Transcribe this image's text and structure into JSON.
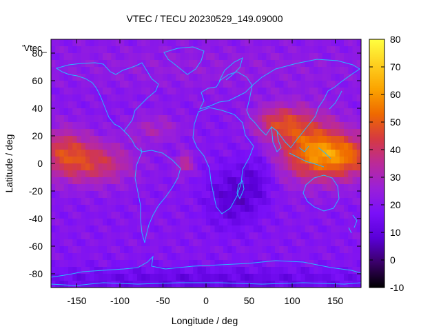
{
  "chart_data": {
    "type": "heatmap",
    "title": "VTEC / TECU 20230529_149.09000",
    "xlabel": "Longitude / deg",
    "ylabel": "Latitude / deg",
    "legend_label": "'Vtec_",
    "xlim": [
      -180,
      180
    ],
    "ylim": [
      -90,
      90
    ],
    "xticks": [
      -150,
      -100,
      -50,
      0,
      50,
      100,
      150
    ],
    "yticks": [
      -80,
      -60,
      -40,
      -20,
      0,
      20,
      40,
      60,
      80
    ],
    "colorbar": {
      "range": [
        -10,
        80
      ],
      "ticks": [
        -10,
        0,
        10,
        20,
        30,
        40,
        50,
        60,
        70,
        80
      ],
      "palette": [
        "#000000",
        "#3a0068",
        "#5a00d8",
        "#7a10f8",
        "#9a20d8",
        "#bb2a98",
        "#d63a40",
        "#ef6a00",
        "#fba400",
        "#fed020",
        "#ffff40"
      ]
    },
    "grid_resolution": {
      "dlon": 5,
      "dlat": 5
    },
    "sample_points": [
      {
        "lon": -170,
        "lat": 5,
        "vtec": 52
      },
      {
        "lon": -140,
        "lat": -5,
        "vtec": 46
      },
      {
        "lon": -110,
        "lat": 8,
        "vtec": 42
      },
      {
        "lon": -30,
        "lat": 15,
        "vtec": 30
      },
      {
        "lon": -20,
        "lat": 0,
        "vtec": 38
      },
      {
        "lon": 30,
        "lat": -25,
        "vtec": 6
      },
      {
        "lon": 80,
        "lat": 35,
        "vtec": 40
      },
      {
        "lon": 150,
        "lat": 10,
        "vtec": 65
      },
      {
        "lon": 170,
        "lat": 5,
        "vtec": 72
      },
      {
        "lon": 0,
        "lat": 70,
        "vtec": 22
      },
      {
        "lon": 60,
        "lat": -85,
        "vtec": 4
      }
    ]
  }
}
